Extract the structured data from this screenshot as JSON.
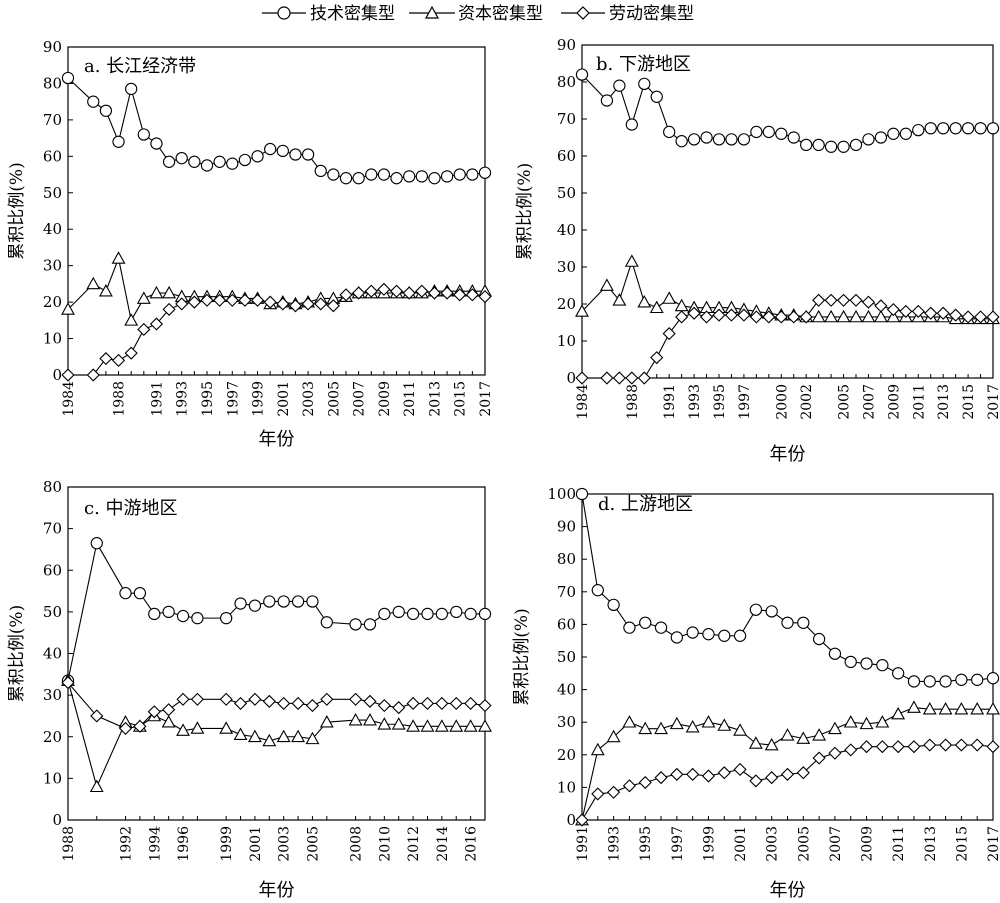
{
  "legend": [
    {
      "label": "技术密集型",
      "marker": "circle"
    },
    {
      "label": "资本密集型",
      "marker": "triangle"
    },
    {
      "label": "劳动密集型",
      "marker": "diamond"
    }
  ],
  "chart_data": [
    {
      "type": "line",
      "title": "a. 长江经济带",
      "xlabel": "年份",
      "ylabel": "累积比例(%)",
      "ylim": [
        0,
        90
      ],
      "yticks": [
        0,
        10,
        20,
        30,
        40,
        50,
        60,
        70,
        80,
        90
      ],
      "x": [
        1984,
        1986,
        1987,
        1988,
        1989,
        1990,
        1991,
        1992,
        1993,
        1994,
        1995,
        1996,
        1997,
        1998,
        1999,
        2000,
        2001,
        2002,
        2003,
        2004,
        2005,
        2006,
        2007,
        2008,
        2009,
        2010,
        2011,
        2012,
        2013,
        2014,
        2015,
        2016,
        2017
      ],
      "xtick_labels": [
        "1984",
        "1988",
        "1991",
        "1993",
        "1995",
        "1997",
        "1999",
        "2001",
        "2003",
        "2005",
        "2007",
        "2009",
        "2011",
        "2013",
        "2015",
        "2017"
      ],
      "series": [
        {
          "name": "技术密集型",
          "marker": "circle",
          "values": [
            81.5,
            75,
            72.5,
            64,
            78.5,
            66,
            63.5,
            58.5,
            59.5,
            58.5,
            57.5,
            58.5,
            58,
            59,
            60,
            62,
            61.5,
            60.5,
            60.5,
            56,
            55,
            54,
            54,
            55,
            55,
            54,
            54.5,
            54.5,
            54,
            54.5,
            55,
            55,
            55.5
          ]
        },
        {
          "name": "资本密集型",
          "marker": "triangle",
          "values": [
            18,
            25,
            23,
            32,
            15,
            21,
            22.5,
            22.5,
            21.5,
            21.5,
            21.5,
            21.5,
            21.5,
            21,
            21,
            19.5,
            20,
            19.5,
            20,
            21,
            21,
            21.5,
            22.5,
            22.5,
            22.5,
            22.5,
            22.5,
            22.5,
            23,
            23,
            23,
            23,
            23
          ]
        },
        {
          "name": "劳动密集型",
          "marker": "diamond",
          "values": [
            0,
            0,
            4.5,
            4,
            6,
            12.5,
            14,
            18,
            19.5,
            20,
            20.5,
            20.5,
            20.5,
            20.5,
            20.5,
            20,
            19.5,
            19,
            19.5,
            19.5,
            19,
            22,
            22.5,
            23,
            23.5,
            23,
            22.5,
            23,
            22.5,
            22.5,
            22,
            22,
            21.5
          ]
        }
      ]
    },
    {
      "type": "line",
      "title": "b. 下游地区",
      "xlabel": "年份",
      "ylabel": "累积比例(%)",
      "ylim": [
        0,
        90
      ],
      "yticks": [
        0,
        10,
        20,
        30,
        40,
        50,
        60,
        70,
        80,
        90
      ],
      "x": [
        1984,
        1986,
        1987,
        1988,
        1989,
        1990,
        1991,
        1992,
        1993,
        1994,
        1995,
        1996,
        1997,
        1998,
        1999,
        2000,
        2001,
        2002,
        2003,
        2004,
        2005,
        2006,
        2007,
        2008,
        2009,
        2010,
        2011,
        2012,
        2013,
        2014,
        2015,
        2016,
        2017
      ],
      "xtick_labels": [
        "1984",
        "1988",
        "1991",
        "1993",
        "1995",
        "1997",
        "2000",
        "2002",
        "2005",
        "2007",
        "2009",
        "2011",
        "2013",
        "2015",
        "2017"
      ],
      "series": [
        {
          "name": "技术密集型",
          "marker": "circle",
          "values": [
            82,
            75,
            79,
            68.5,
            79.5,
            76,
            66.5,
            64,
            64.5,
            65,
            64.5,
            64.5,
            64.5,
            66.5,
            66.5,
            66,
            65,
            63,
            63,
            62.5,
            62.5,
            63,
            64.5,
            65,
            66,
            66,
            67,
            67.5,
            67.5,
            67.5,
            67.5,
            67.5,
            67.5
          ]
        },
        {
          "name": "资本密集型",
          "marker": "triangle",
          "values": [
            18,
            25,
            21,
            31.5,
            20.5,
            19,
            21.5,
            19.5,
            19,
            19,
            19,
            19,
            18.5,
            18,
            17.5,
            17,
            17,
            16.5,
            16.5,
            16.5,
            16.5,
            16.5,
            16.5,
            16.5,
            16.5,
            16.5,
            16.5,
            16.5,
            16.5,
            16,
            16,
            16,
            16
          ]
        },
        {
          "name": "劳动密集型",
          "marker": "diamond",
          "values": [
            0,
            0,
            0,
            0,
            0,
            5.5,
            12,
            16.5,
            17.5,
            16.5,
            17,
            17,
            17,
            16.5,
            16.5,
            16.5,
            16.5,
            16.5,
            21,
            21,
            21,
            21,
            20.5,
            19.5,
            18.5,
            18,
            18,
            17.5,
            17.5,
            17,
            16.5,
            16.5,
            16.5
          ]
        }
      ]
    },
    {
      "type": "line",
      "title": "c. 中游地区",
      "xlabel": "年份",
      "ylabel": "累积比例(%)",
      "ylim": [
        0,
        80
      ],
      "yticks": [
        0,
        10,
        20,
        30,
        40,
        50,
        60,
        70,
        80
      ],
      "x": [
        1988,
        1990,
        1992,
        1993,
        1994,
        1995,
        1996,
        1997,
        1999,
        2000,
        2001,
        2002,
        2003,
        2004,
        2005,
        2006,
        2008,
        2009,
        2010,
        2011,
        2012,
        2013,
        2014,
        2015,
        2016,
        2017
      ],
      "xtick_labels": [
        "1988",
        "1992",
        "1994",
        "1996",
        "1999",
        "2001",
        "2003",
        "2005",
        "2008",
        "2010",
        "2012",
        "2014",
        "2016"
      ],
      "series": [
        {
          "name": "技术密集型",
          "marker": "circle",
          "values": [
            33.5,
            66.5,
            54.5,
            54.5,
            49.5,
            50,
            49,
            48.5,
            48.5,
            52,
            51.5,
            52.5,
            52.5,
            52.5,
            52.5,
            47.5,
            47,
            47,
            49.5,
            50,
            49.5,
            49.5,
            49.5,
            50,
            49.5,
            49.5
          ]
        },
        {
          "name": "资本密集型",
          "marker": "triangle",
          "values": [
            33.5,
            8,
            23.5,
            22.5,
            25,
            23.5,
            21.5,
            22,
            22,
            20.5,
            20,
            19,
            20,
            20,
            19.5,
            23.5,
            24,
            24,
            23,
            23,
            22.5,
            22.5,
            22.5,
            22.5,
            22.5,
            22.5
          ]
        },
        {
          "name": "劳动密集型",
          "marker": "diamond",
          "values": [
            33,
            25,
            22,
            22.5,
            26,
            26.5,
            29,
            29,
            29,
            28,
            29,
            28.5,
            28,
            28,
            27.5,
            29,
            29,
            28.5,
            27.5,
            27,
            28,
            28,
            28,
            28,
            28,
            27.5
          ]
        }
      ]
    },
    {
      "type": "line",
      "title": "d. 上游地区",
      "xlabel": "年份",
      "ylabel": "累积比例(%)",
      "ylim": [
        0,
        100
      ],
      "yticks": [
        0,
        10,
        20,
        30,
        40,
        50,
        60,
        70,
        80,
        90,
        100
      ],
      "x": [
        1991,
        1992,
        1993,
        1994,
        1995,
        1996,
        1997,
        1998,
        1999,
        2000,
        2001,
        2002,
        2003,
        2004,
        2005,
        2006,
        2007,
        2008,
        2009,
        2010,
        2011,
        2012,
        2013,
        2014,
        2015,
        2016,
        2017
      ],
      "xtick_labels": [
        "1991",
        "1993",
        "1995",
        "1997",
        "1999",
        "2001",
        "2003",
        "2005",
        "2007",
        "2009",
        "2011",
        "2013",
        "2015",
        "2017"
      ],
      "series": [
        {
          "name": "技术密集型",
          "marker": "circle",
          "values": [
            100,
            70.5,
            66,
            59,
            60.5,
            59,
            56,
            57.5,
            57,
            56.5,
            56.5,
            64.5,
            64,
            60.5,
            60.5,
            55.5,
            51,
            48.5,
            48,
            47.5,
            45,
            42.5,
            42.5,
            42.5,
            43,
            43,
            43.5
          ]
        },
        {
          "name": "资本密集型",
          "marker": "triangle",
          "values": [
            0,
            21.5,
            25.5,
            30,
            28,
            28,
            29.5,
            28.5,
            30,
            29,
            27.5,
            23.5,
            23,
            26,
            25,
            26,
            28,
            30,
            29.5,
            30,
            32.5,
            34.5,
            34,
            34,
            34,
            34,
            34
          ]
        },
        {
          "name": "劳动密集型",
          "marker": "diamond",
          "values": [
            0,
            8,
            8.5,
            10.5,
            11.5,
            13,
            14,
            14,
            13.5,
            14.5,
            15.5,
            12,
            13,
            14,
            14.5,
            19,
            20.5,
            21.5,
            22.5,
            22.5,
            22.5,
            22.5,
            23,
            23,
            23,
            23,
            22.5
          ]
        }
      ]
    }
  ]
}
